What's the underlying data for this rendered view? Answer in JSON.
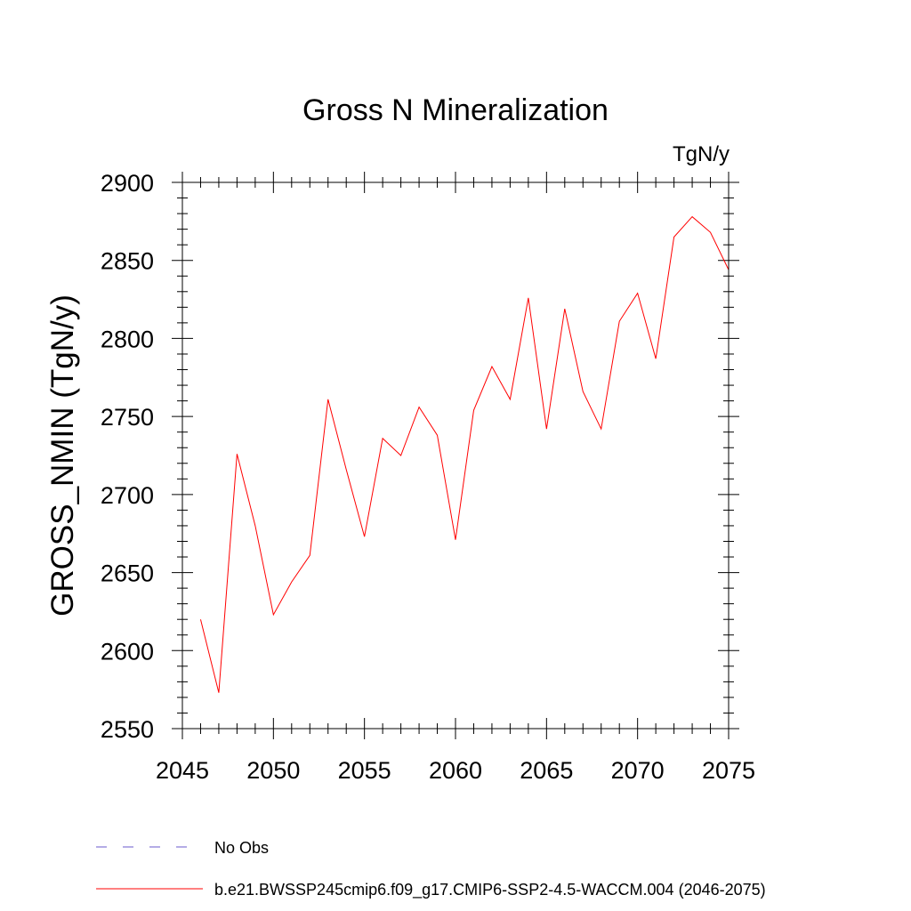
{
  "chart_data": {
    "type": "line",
    "title": "Gross N Mineralization",
    "units": "TgN/y",
    "xlabel": "",
    "ylabel": "GROSS_NMIN  (TgN/y)",
    "xlim": [
      2045,
      2075
    ],
    "ylim": [
      2550,
      2900
    ],
    "x_ticks": [
      2045,
      2050,
      2055,
      2060,
      2065,
      2070,
      2075
    ],
    "y_ticks": [
      2550,
      2600,
      2650,
      2700,
      2750,
      2800,
      2850,
      2900
    ],
    "x_minor_step": 1,
    "y_minor_step": 10,
    "grid": false,
    "legend_position": "bottom-left",
    "series": [
      {
        "name": "b.e21.BWSSP245cmip6.f09_g17.CMIP6-SSP2-4.5-WACCM.004 (2046-2075)",
        "color": "#ff0000",
        "style": "solid",
        "x": [
          2046,
          2047,
          2048,
          2049,
          2050,
          2051,
          2052,
          2053,
          2054,
          2055,
          2056,
          2057,
          2058,
          2059,
          2060,
          2061,
          2062,
          2063,
          2064,
          2065,
          2066,
          2067,
          2068,
          2069,
          2070,
          2071,
          2072,
          2073,
          2074,
          2075
        ],
        "y": [
          2620,
          2573,
          2726,
          2680,
          2623,
          2644,
          2661,
          2761,
          2716,
          2673,
          2736,
          2725,
          2756,
          2738,
          2671,
          2754,
          2782,
          2761,
          2826,
          2742,
          2819,
          2766,
          2742,
          2811,
          2829,
          2787,
          2865,
          2878,
          2868,
          2844
        ]
      }
    ],
    "legend_entries": [
      {
        "label": "No Obs",
        "color": "#6a5acd",
        "style": "dashed"
      },
      {
        "label": "b.e21.BWSSP245cmip6.f09_g17.CMIP6-SSP2-4.5-WACCM.004 (2046-2075)",
        "color": "#ff0000",
        "style": "solid"
      }
    ]
  }
}
